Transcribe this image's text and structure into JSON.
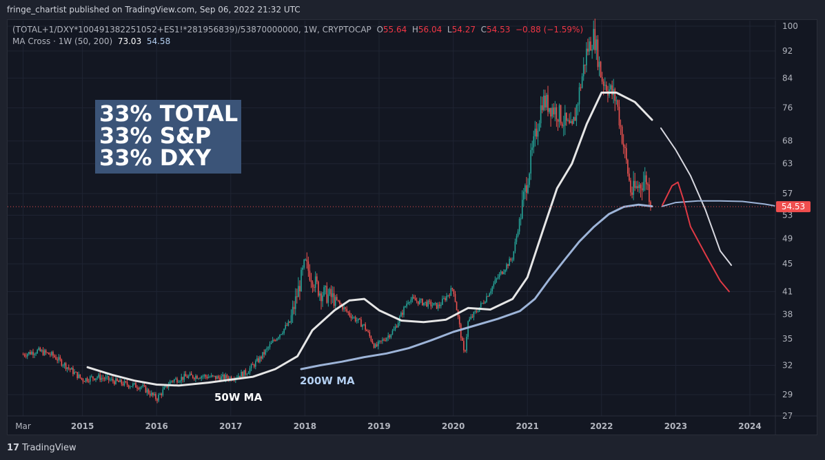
{
  "header": {
    "published": "fringe_chartist published on TradingView.com, Sep 06, 2022 21:32 UTC"
  },
  "legend": {
    "symbol": "(TOTAL+1/DXY*100491382251052+ES1!*281956839)/53870000000, 1W, CRYPTOCAP",
    "o_label": "O",
    "o_value": "55.64",
    "h_label": "H",
    "h_value": "56.04",
    "l_label": "L",
    "l_value": "54.27",
    "c_label": "C",
    "c_value": "54.53",
    "change": "−0.88 (−1.59%)",
    "indicator": "MA Cross · 1W (50, 200)",
    "ma50_value": "73.03",
    "ma200_value": "54.58"
  },
  "annotations": {
    "mix_line1": "33% TOTAL",
    "mix_line2": "33% S&P",
    "mix_line3": "33% DXY",
    "ma50_label": "50W MA",
    "ma200_label": "200W MA"
  },
  "footer": {
    "brand": "TradingView",
    "logo_glyph": "17"
  },
  "colors": {
    "background": "#131722",
    "up": "#26a69a",
    "down": "#ef5350",
    "ma50": "#e6e6e6",
    "ma200": "#9db4d8",
    "projection_down": "#e03a45",
    "price_tag": "#f04e4e"
  },
  "chart_data": {
    "type": "candlestick",
    "y_scale": "log",
    "ylim": [
      27,
      100
    ],
    "y_ticks": [
      "100",
      "92",
      "84",
      "76",
      "68",
      "63",
      "57",
      "53",
      "49",
      "45",
      "41",
      "38",
      "35",
      "32",
      "29",
      "27"
    ],
    "x_ticks": [
      "Mar",
      "2015",
      "2016",
      "2017",
      "2018",
      "2019",
      "2020",
      "2021",
      "2022",
      "2023",
      "2024"
    ],
    "last_price": "54.53",
    "series": [
      {
        "name": "Price",
        "x": [
          2014.2,
          2014.4,
          2014.6,
          2014.8,
          2015.0,
          2015.2,
          2015.4,
          2015.6,
          2015.8,
          2016.0,
          2016.2,
          2016.4,
          2016.6,
          2016.8,
          2017.0,
          2017.2,
          2017.4,
          2017.6,
          2017.8,
          2018.0,
          2018.2,
          2018.4,
          2018.6,
          2018.8,
          2018.95,
          2019.2,
          2019.4,
          2019.6,
          2019.8,
          2020.0,
          2020.15,
          2020.2,
          2020.4,
          2020.6,
          2020.8,
          2021.0,
          2021.2,
          2021.4,
          2021.6,
          2021.8,
          2021.9,
          2022.0,
          2022.2,
          2022.4,
          2022.6,
          2022.68
        ],
        "y": [
          33.2,
          33.6,
          33.1,
          31.8,
          30.5,
          30.8,
          30.4,
          30.0,
          29.8,
          28.6,
          30.4,
          30.8,
          30.9,
          30.7,
          30.7,
          31.2,
          32.8,
          35.0,
          37.0,
          45.0,
          41.0,
          40.0,
          38.0,
          36.5,
          34.0,
          36.0,
          40.0,
          39.5,
          39.0,
          41.5,
          33.0,
          37.0,
          39.5,
          43.0,
          46.0,
          60.0,
          78.0,
          75.0,
          70.0,
          92.0,
          97.0,
          84.0,
          78.0,
          57.0,
          60.0,
          54.5
        ]
      },
      {
        "name": "50W MA",
        "x": [
          2015.07,
          2015.4,
          2015.7,
          2016.0,
          2016.3,
          2016.7,
          2017.0,
          2017.3,
          2017.6,
          2017.9,
          2018.1,
          2018.4,
          2018.6,
          2018.8,
          2019.0,
          2019.3,
          2019.6,
          2019.9,
          2020.2,
          2020.5,
          2020.8,
          2021.0,
          2021.2,
          2021.4,
          2021.6,
          2021.8,
          2022.0,
          2022.2,
          2022.45,
          2022.68
        ],
        "y": [
          31.8,
          31.0,
          30.4,
          30.0,
          29.9,
          30.2,
          30.5,
          30.8,
          31.6,
          33.0,
          36.0,
          38.5,
          39.8,
          40.0,
          38.5,
          37.2,
          37.0,
          37.3,
          38.8,
          38.6,
          40.0,
          43.0,
          50.0,
          58.0,
          63.0,
          72.0,
          80.0,
          80.0,
          77.5,
          73.0
        ]
      },
      {
        "name": "200W MA",
        "x": [
          2017.95,
          2018.2,
          2018.5,
          2018.8,
          2019.1,
          2019.4,
          2019.7,
          2020.0,
          2020.3,
          2020.6,
          2020.9,
          2021.1,
          2021.3,
          2021.5,
          2021.7,
          2021.9,
          2022.1,
          2022.3,
          2022.5,
          2022.68
        ],
        "y": [
          31.6,
          32.0,
          32.4,
          32.9,
          33.3,
          33.9,
          34.8,
          35.8,
          36.6,
          37.4,
          38.4,
          40.0,
          42.8,
          45.6,
          48.5,
          51.0,
          53.2,
          54.5,
          54.9,
          54.6
        ]
      },
      {
        "name": "50W MA projection",
        "x": [
          2022.8,
          2023.0,
          2023.2,
          2023.4,
          2023.6,
          2023.75
        ],
        "y": [
          71.0,
          66.0,
          60.5,
          54.0,
          47.0,
          44.8
        ]
      },
      {
        "name": "200W MA projection",
        "x": [
          2022.82,
          2023.0,
          2023.3,
          2023.6,
          2023.9,
          2024.2,
          2024.33
        ],
        "y": [
          54.6,
          55.3,
          55.6,
          55.6,
          55.5,
          55.0,
          54.7
        ]
      },
      {
        "name": "Price projection",
        "x": [
          2022.82,
          2022.95,
          2023.03,
          2023.1,
          2023.2,
          2023.4,
          2023.6,
          2023.72
        ],
        "y": [
          54.8,
          58.5,
          59.2,
          56.0,
          51.0,
          46.5,
          42.5,
          41.0
        ]
      }
    ]
  }
}
